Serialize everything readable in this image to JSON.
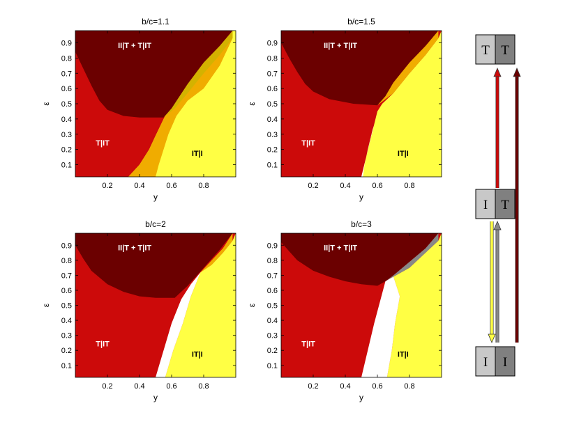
{
  "chart_data": [
    {
      "type": "area",
      "title": "b/c=1.1",
      "xlabel": "y",
      "ylabel": "ε",
      "xlim": [
        0,
        1
      ],
      "ylim": [
        0.02,
        0.98
      ],
      "xticks": [
        "0.2",
        "0.4",
        "0.6",
        "0.8"
      ],
      "yticks": [
        "0.1",
        "0.2",
        "0.3",
        "0.4",
        "0.5",
        "0.6",
        "0.7",
        "0.8",
        "0.9"
      ],
      "regions": [
        {
          "name": "II|T + T|IT",
          "label": "II|T + T|IT",
          "color": "#6b0000",
          "label_at": [
            0.37,
            0.88
          ],
          "label_color": "#ffffff",
          "boundary": [
            [
              0,
              0.98
            ],
            [
              0,
              0.84
            ],
            [
              0.05,
              0.73
            ],
            [
              0.1,
              0.62
            ],
            [
              0.15,
              0.52
            ],
            [
              0.2,
              0.46
            ],
            [
              0.3,
              0.42
            ],
            [
              0.4,
              0.41
            ],
            [
              0.55,
              0.41
            ],
            [
              0.6,
              0.47
            ],
            [
              0.7,
              0.63
            ],
            [
              0.8,
              0.77
            ],
            [
              0.9,
              0.88
            ],
            [
              0.98,
              0.98
            ]
          ]
        },
        {
          "name": "T|IT",
          "label": "T|IT",
          "color": "#cc0a0a",
          "label_at": [
            0.17,
            0.24
          ],
          "label_color": "#ffffff"
        },
        {
          "name": "IT|I",
          "label": "IT|I",
          "color": "#ffff44",
          "label_at": [
            0.76,
            0.17
          ],
          "label_color": "#000000"
        },
        {
          "name": "bistable",
          "label": "",
          "color": "#f0ac00",
          "left": [
            [
              0.33,
              0.02
            ],
            [
              0.4,
              0.1
            ],
            [
              0.46,
              0.2
            ],
            [
              0.5,
              0.29
            ],
            [
              0.55,
              0.4
            ],
            [
              0.6,
              0.5
            ],
            [
              0.7,
              0.65
            ],
            [
              0.8,
              0.78
            ],
            [
              0.9,
              0.88
            ],
            [
              0.98,
              0.98
            ]
          ],
          "right": [
            [
              0.98,
              0.93
            ],
            [
              0.9,
              0.75
            ],
            [
              0.8,
              0.6
            ],
            [
              0.7,
              0.52
            ],
            [
              0.63,
              0.42
            ],
            [
              0.58,
              0.3
            ],
            [
              0.55,
              0.2
            ],
            [
              0.52,
              0.1
            ],
            [
              0.5,
              0.02
            ]
          ]
        },
        {
          "name": "overlap",
          "label": "",
          "color": "#d4b200",
          "boundary": [
            [
              0.55,
              0.41
            ],
            [
              0.62,
              0.47
            ],
            [
              0.7,
              0.57
            ],
            [
              0.8,
              0.7
            ],
            [
              0.9,
              0.82
            ],
            [
              0.98,
              0.93
            ],
            [
              0.98,
              0.98
            ],
            [
              0.9,
              0.88
            ],
            [
              0.8,
              0.77
            ],
            [
              0.7,
              0.63
            ],
            [
              0.6,
              0.47
            ]
          ]
        }
      ]
    },
    {
      "type": "area",
      "title": "b/c=1.5",
      "xlabel": "y",
      "ylabel": "ε",
      "xlim": [
        0,
        1
      ],
      "ylim": [
        0.02,
        0.98
      ],
      "xticks": [
        "0.2",
        "0.4",
        "0.6",
        "0.8"
      ],
      "yticks": [
        "0.1",
        "0.2",
        "0.3",
        "0.4",
        "0.5",
        "0.6",
        "0.7",
        "0.8",
        "0.9"
      ],
      "regions": [
        {
          "name": "II|T + T|IT",
          "label": "II|T + T|IT",
          "color": "#6b0000",
          "label_at": [
            0.37,
            0.88
          ],
          "label_color": "#ffffff",
          "boundary": [
            [
              0,
              0.98
            ],
            [
              0,
              0.9
            ],
            [
              0.05,
              0.8
            ],
            [
              0.1,
              0.71
            ],
            [
              0.15,
              0.63
            ],
            [
              0.2,
              0.58
            ],
            [
              0.3,
              0.53
            ],
            [
              0.45,
              0.5
            ],
            [
              0.6,
              0.49
            ],
            [
              0.65,
              0.55
            ],
            [
              0.7,
              0.64
            ],
            [
              0.8,
              0.77
            ],
            [
              0.9,
              0.88
            ],
            [
              0.98,
              0.98
            ]
          ]
        },
        {
          "name": "T|IT",
          "label": "T|IT",
          "color": "#cc0a0a",
          "label_at": [
            0.17,
            0.24
          ],
          "label_color": "#ffffff"
        },
        {
          "name": "IT|I",
          "label": "IT|I",
          "color": "#ffff44",
          "label_at": [
            0.76,
            0.17
          ],
          "label_color": "#000000"
        },
        {
          "name": "bistable",
          "label": "",
          "color": "#f0ac00",
          "left": [
            [
              0.6,
              0.49
            ],
            [
              0.7,
              0.64
            ],
            [
              0.8,
              0.77
            ],
            [
              0.9,
              0.88
            ],
            [
              0.98,
              0.98
            ]
          ],
          "right": [
            [
              0.98,
              0.93
            ],
            [
              0.9,
              0.82
            ],
            [
              0.8,
              0.7
            ],
            [
              0.7,
              0.57
            ],
            [
              0.6,
              0.49
            ]
          ]
        },
        {
          "name": "white-gap",
          "label": "",
          "color": "#ffffff",
          "boundary": [
            [
              0.5,
              0.02
            ],
            [
              0.53,
              0.15
            ],
            [
              0.56,
              0.28
            ],
            [
              0.58,
              0.36
            ],
            [
              0.57,
              0.33
            ],
            [
              0.54,
              0.2
            ],
            [
              0.52,
              0.1
            ],
            [
              0.51,
              0.02
            ]
          ]
        }
      ]
    },
    {
      "type": "area",
      "title": "b/c=2",
      "xlabel": "y",
      "ylabel": "ε",
      "xlim": [
        0,
        1
      ],
      "ylim": [
        0.02,
        0.98
      ],
      "xticks": [
        "0.2",
        "0.4",
        "0.6",
        "0.8"
      ],
      "yticks": [
        "0.1",
        "0.2",
        "0.3",
        "0.4",
        "0.5",
        "0.6",
        "0.7",
        "0.8",
        "0.9"
      ],
      "regions": [
        {
          "name": "II|T + T|IT",
          "label": "II|T + T|IT",
          "color": "#6b0000",
          "label_at": [
            0.37,
            0.88
          ],
          "label_color": "#ffffff",
          "boundary": [
            [
              0,
              0.98
            ],
            [
              0,
              0.9
            ],
            [
              0.05,
              0.81
            ],
            [
              0.1,
              0.73
            ],
            [
              0.2,
              0.64
            ],
            [
              0.3,
              0.59
            ],
            [
              0.4,
              0.56
            ],
            [
              0.5,
              0.55
            ],
            [
              0.62,
              0.55
            ],
            [
              0.7,
              0.63
            ],
            [
              0.8,
              0.75
            ],
            [
              0.9,
              0.87
            ],
            [
              0.98,
              0.98
            ]
          ]
        },
        {
          "name": "T|IT",
          "label": "T|IT",
          "color": "#cc0a0a",
          "label_at": [
            0.17,
            0.24
          ],
          "label_color": "#ffffff"
        },
        {
          "name": "IT|I",
          "label": "IT|I",
          "color": "#ffff44",
          "label_at": [
            0.76,
            0.17
          ],
          "label_color": "#000000"
        },
        {
          "name": "bistable",
          "label": "",
          "color": "#f0ac00",
          "left": [
            [
              0.78,
              0.72
            ],
            [
              0.85,
              0.8
            ],
            [
              0.92,
              0.88
            ],
            [
              0.98,
              0.98
            ]
          ],
          "right": [
            [
              0.98,
              0.93
            ],
            [
              0.92,
              0.85
            ],
            [
              0.85,
              0.77
            ],
            [
              0.78,
              0.72
            ]
          ]
        },
        {
          "name": "white-gap",
          "label": "",
          "color": "#ffffff",
          "boundary": [
            [
              0.5,
              0.02
            ],
            [
              0.55,
              0.2
            ],
            [
              0.6,
              0.38
            ],
            [
              0.66,
              0.54
            ],
            [
              0.72,
              0.64
            ],
            [
              0.78,
              0.72
            ],
            [
              0.72,
              0.56
            ],
            [
              0.67,
              0.38
            ],
            [
              0.61,
              0.2
            ],
            [
              0.56,
              0.02
            ]
          ]
        }
      ]
    },
    {
      "type": "area",
      "title": "b/c=3",
      "xlabel": "y",
      "ylabel": "ε",
      "xlim": [
        0,
        1
      ],
      "ylim": [
        0.02,
        0.98
      ],
      "xticks": [
        "0.2",
        "0.4",
        "0.6",
        "0.8"
      ],
      "yticks": [
        "0.1",
        "0.2",
        "0.3",
        "0.4",
        "0.5",
        "0.6",
        "0.7",
        "0.8",
        "0.9"
      ],
      "regions": [
        {
          "name": "II|T + T|IT",
          "label": "II|T + T|IT",
          "color": "#6b0000",
          "label_at": [
            0.37,
            0.88
          ],
          "label_color": "#ffffff",
          "boundary": [
            [
              0,
              0.98
            ],
            [
              0,
              0.92
            ],
            [
              0.05,
              0.86
            ],
            [
              0.1,
              0.8
            ],
            [
              0.2,
              0.73
            ],
            [
              0.3,
              0.69
            ],
            [
              0.4,
              0.66
            ],
            [
              0.5,
              0.64
            ],
            [
              0.6,
              0.63
            ],
            [
              0.65,
              0.66
            ],
            [
              0.7,
              0.7
            ],
            [
              0.8,
              0.79
            ],
            [
              0.9,
              0.88
            ],
            [
              0.98,
              0.98
            ]
          ]
        },
        {
          "name": "T|IT",
          "label": "T|IT",
          "color": "#cc0a0a",
          "label_at": [
            0.17,
            0.24
          ],
          "label_color": "#ffffff"
        },
        {
          "name": "IT|I",
          "label": "IT|I",
          "color": "#ffff44",
          "label_at": [
            0.76,
            0.17
          ],
          "label_color": "#000000"
        },
        {
          "name": "gray-region",
          "label": "",
          "color": "#888888",
          "boundary": [
            [
              0.65,
              0.66
            ],
            [
              0.7,
              0.7
            ],
            [
              0.8,
              0.79
            ],
            [
              0.9,
              0.88
            ],
            [
              0.98,
              0.98
            ],
            [
              0.98,
              0.93
            ],
            [
              0.9,
              0.85
            ],
            [
              0.8,
              0.75
            ],
            [
              0.7,
              0.69
            ]
          ]
        },
        {
          "name": "white-gap",
          "label": "",
          "color": "#ffffff",
          "boundary": [
            [
              0.5,
              0.02
            ],
            [
              0.54,
              0.2
            ],
            [
              0.58,
              0.38
            ],
            [
              0.62,
              0.54
            ],
            [
              0.65,
              0.66
            ],
            [
              0.7,
              0.69
            ],
            [
              0.74,
              0.56
            ],
            [
              0.71,
              0.38
            ],
            [
              0.69,
              0.2
            ],
            [
              0.66,
              0.02
            ]
          ]
        }
      ]
    }
  ],
  "diagram": {
    "states": [
      {
        "name": "TT",
        "left": "T",
        "right": "T"
      },
      {
        "name": "IT",
        "left": "I",
        "right": "T"
      },
      {
        "name": "II",
        "left": "I",
        "right": "I"
      }
    ],
    "arrows": [
      {
        "name": "IT-to-TT",
        "color": "#cc0a0a"
      },
      {
        "name": "II-to-TT",
        "color": "#6b0000"
      },
      {
        "name": "IT-to-II",
        "color": "#ffff44"
      },
      {
        "name": "II-to-IT",
        "color": "#888888"
      }
    ],
    "colors": {
      "left_box": "#c8c8c8",
      "right_box": "#808080"
    }
  }
}
